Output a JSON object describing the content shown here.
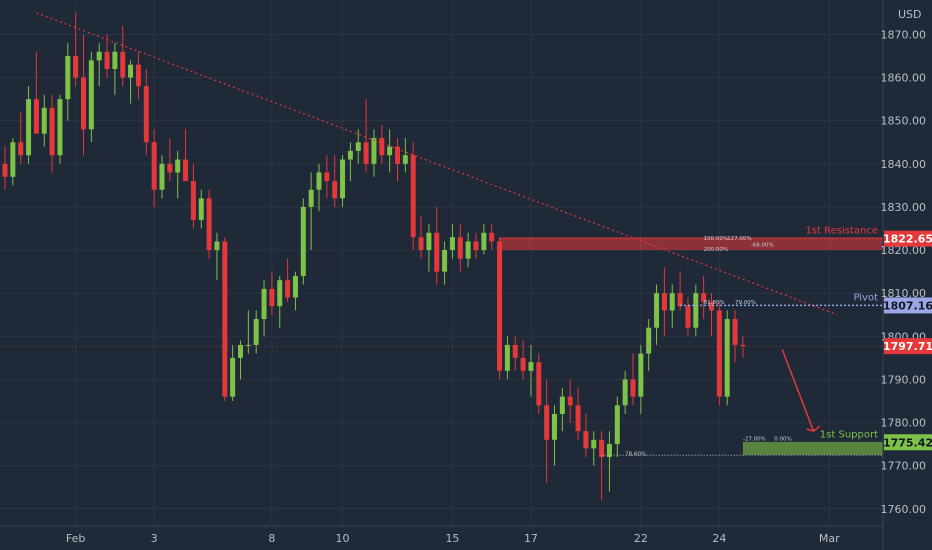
{
  "colors": {
    "background": "#1f2937",
    "up": "#7ec248",
    "down": "#e5383b",
    "grid": "#2b3544",
    "text": "#b8bec9",
    "resistance": "#e5383b",
    "pivot": "#9aa6e6",
    "support": "#7ec248",
    "price": "#e5383b"
  },
  "chart_data": {
    "type": "candlestick",
    "currency": "USD",
    "ylim": [
      1756,
      1878
    ],
    "y_ticks": [
      "1870.00",
      "1860.00",
      "1850.00",
      "1840.00",
      "1830.00",
      "1820.00",
      "1810.00",
      "1800.00",
      "1790.00",
      "1780.00",
      "1770.00",
      "1760.00"
    ],
    "x_ticks": [
      {
        "label": "Feb",
        "i": 9
      },
      {
        "label": "3",
        "i": 19
      },
      {
        "label": "8",
        "i": 34
      },
      {
        "label": "10",
        "i": 43
      },
      {
        "label": "15",
        "i": 57
      },
      {
        "label": "17",
        "i": 67
      },
      {
        "label": "22",
        "i": 81
      },
      {
        "label": "24",
        "i": 91
      },
      {
        "label": "Mar",
        "i": 105
      }
    ],
    "candles_ohlc": [
      [
        1840,
        1844,
        1834,
        1837
      ],
      [
        1837,
        1846,
        1835,
        1845
      ],
      [
        1845,
        1852,
        1840,
        1842
      ],
      [
        1842,
        1858,
        1840,
        1855
      ],
      [
        1855,
        1866,
        1852,
        1847
      ],
      [
        1847,
        1856,
        1844,
        1853
      ],
      [
        1853,
        1856,
        1838,
        1842
      ],
      [
        1842,
        1856,
        1840,
        1855
      ],
      [
        1855,
        1868,
        1850,
        1865
      ],
      [
        1865,
        1875,
        1858,
        1860
      ],
      [
        1860,
        1870,
        1842,
        1848
      ],
      [
        1848,
        1866,
        1845,
        1864
      ],
      [
        1864,
        1868,
        1858,
        1866
      ],
      [
        1866,
        1870,
        1860,
        1862
      ],
      [
        1862,
        1868,
        1856,
        1866
      ],
      [
        1866,
        1872,
        1858,
        1860
      ],
      [
        1860,
        1864,
        1854,
        1863
      ],
      [
        1863,
        1866,
        1855,
        1858
      ],
      [
        1858,
        1862,
        1842,
        1845
      ],
      [
        1845,
        1848,
        1830,
        1834
      ],
      [
        1834,
        1842,
        1832,
        1840
      ],
      [
        1840,
        1846,
        1836,
        1838
      ],
      [
        1838,
        1843,
        1832,
        1841
      ],
      [
        1841,
        1848,
        1836,
        1836
      ],
      [
        1836,
        1840,
        1825,
        1827
      ],
      [
        1827,
        1834,
        1825,
        1832
      ],
      [
        1832,
        1834,
        1818,
        1820
      ],
      [
        1820,
        1824,
        1813,
        1822
      ],
      [
        1822,
        1823,
        1785,
        1786
      ],
      [
        1786,
        1798,
        1785,
        1795
      ],
      [
        1795,
        1799,
        1790,
        1798
      ],
      [
        1798,
        1806,
        1796,
        1798
      ],
      [
        1798,
        1806,
        1796,
        1804
      ],
      [
        1804,
        1813,
        1800,
        1811
      ],
      [
        1811,
        1815,
        1805,
        1807
      ],
      [
        1807,
        1814,
        1802,
        1813
      ],
      [
        1813,
        1818,
        1808,
        1809
      ],
      [
        1809,
        1815,
        1806,
        1814
      ],
      [
        1814,
        1832,
        1812,
        1830
      ],
      [
        1830,
        1838,
        1820,
        1834
      ],
      [
        1834,
        1840,
        1829,
        1838
      ],
      [
        1838,
        1842,
        1832,
        1836
      ],
      [
        1836,
        1842,
        1830,
        1832
      ],
      [
        1832,
        1842,
        1830,
        1841
      ],
      [
        1841,
        1845,
        1836,
        1843
      ],
      [
        1843,
        1848,
        1840,
        1845
      ],
      [
        1845,
        1855,
        1838,
        1840
      ],
      [
        1840,
        1848,
        1837,
        1846
      ],
      [
        1846,
        1849,
        1840,
        1842
      ],
      [
        1842,
        1848,
        1838,
        1844
      ],
      [
        1844,
        1846,
        1836,
        1840
      ],
      [
        1840,
        1846,
        1838,
        1842
      ],
      [
        1842,
        1845,
        1820,
        1823
      ],
      [
        1823,
        1828,
        1818,
        1820
      ],
      [
        1820,
        1826,
        1815,
        1824
      ],
      [
        1824,
        1830,
        1812,
        1815
      ],
      [
        1815,
        1822,
        1812,
        1820
      ],
      [
        1820,
        1826,
        1818,
        1823
      ],
      [
        1823,
        1826,
        1815,
        1818
      ],
      [
        1818,
        1824,
        1816,
        1822
      ],
      [
        1822,
        1824,
        1818,
        1820
      ],
      [
        1820,
        1826,
        1819,
        1824
      ],
      [
        1824,
        1826,
        1820,
        1822
      ],
      [
        1822,
        1823,
        1790,
        1792
      ],
      [
        1792,
        1800,
        1790,
        1798
      ],
      [
        1798,
        1800,
        1792,
        1795
      ],
      [
        1795,
        1799,
        1790,
        1792
      ],
      [
        1792,
        1798,
        1786,
        1794
      ],
      [
        1794,
        1796,
        1782,
        1784
      ],
      [
        1784,
        1790,
        1766,
        1776
      ],
      [
        1776,
        1784,
        1770,
        1782
      ],
      [
        1782,
        1788,
        1778,
        1786
      ],
      [
        1786,
        1790,
        1780,
        1784
      ],
      [
        1784,
        1788,
        1776,
        1778
      ],
      [
        1778,
        1782,
        1772,
        1774
      ],
      [
        1774,
        1778,
        1770,
        1776
      ],
      [
        1776,
        1778,
        1762,
        1772
      ],
      [
        1772,
        1778,
        1764,
        1775
      ],
      [
        1775,
        1786,
        1772,
        1784
      ],
      [
        1784,
        1792,
        1782,
        1790
      ],
      [
        1790,
        1796,
        1784,
        1786
      ],
      [
        1786,
        1798,
        1782,
        1796
      ],
      [
        1796,
        1804,
        1792,
        1802
      ],
      [
        1802,
        1812,
        1798,
        1810
      ],
      [
        1810,
        1816,
        1800,
        1806
      ],
      [
        1806,
        1812,
        1802,
        1810
      ],
      [
        1810,
        1815,
        1806,
        1807
      ],
      [
        1807,
        1809,
        1800,
        1802
      ],
      [
        1802,
        1812,
        1800,
        1810
      ],
      [
        1810,
        1814,
        1804,
        1808
      ],
      [
        1808,
        1810,
        1800,
        1806
      ],
      [
        1806,
        1808,
        1784,
        1786
      ],
      [
        1786,
        1806,
        1784,
        1804
      ],
      [
        1804,
        1806,
        1794,
        1798
      ],
      [
        1798,
        1800,
        1795,
        1797.71
      ]
    ],
    "trendline": [
      {
        "i": 4,
        "y": 1875
      },
      {
        "i": 106,
        "y": 1805
      }
    ],
    "levels": [
      {
        "name": "1st Resistance",
        "value": "1822.65",
        "y": 1822.65,
        "zone": [
          1820,
          1823
        ]
      },
      {
        "name": "Pivot",
        "value": "1807.16",
        "y": 1807.16
      },
      {
        "name": "1st Support",
        "value": "1775.42",
        "y": 1775.42,
        "zone": [
          1772.5,
          1775.5
        ]
      }
    ],
    "fib_labels": [
      {
        "text": "100.00%",
        "i": 89,
        "y": 1822.3
      },
      {
        "text": "127.00%",
        "i": 92,
        "y": 1822.3
      },
      {
        "text": "200.00%",
        "i": 89,
        "y": 1819.8
      },
      {
        "text": "-68.00%",
        "i": 95,
        "y": 1820.8
      },
      {
        "text": "61.80%",
        "i": 89,
        "y": 1807.5
      },
      {
        "text": "79.00%",
        "i": 93,
        "y": 1807.5
      },
      {
        "text": "-27.00%",
        "i": 94,
        "y": 1775.8
      },
      {
        "text": "0.00%",
        "i": 98,
        "y": 1775.8
      },
      {
        "text": "78.60%",
        "i": 79,
        "y": 1772.4
      }
    ],
    "current_price": "1797.71",
    "current_price_y": 1797.71
  }
}
